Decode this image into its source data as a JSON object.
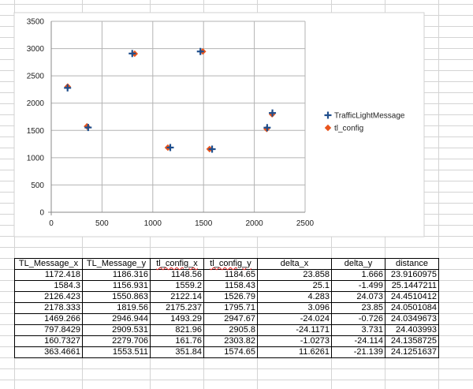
{
  "chart_data": {
    "type": "scatter",
    "xlim": [
      0,
      2500
    ],
    "ylim": [
      0,
      3500
    ],
    "x_ticks": [
      "0",
      "500",
      "1000",
      "1500",
      "2000",
      "2500"
    ],
    "y_ticks": [
      "0",
      "500",
      "1000",
      "1500",
      "2000",
      "2500",
      "3000",
      "3500"
    ],
    "grid": true,
    "legend_position": "right",
    "series": [
      {
        "name": "TrafficLightMessage",
        "marker": "plus",
        "color": "#1f4e8c",
        "points": [
          [
            1172.418,
            1186.316
          ],
          [
            1584.3,
            1156.931
          ],
          [
            2126.423,
            1550.863
          ],
          [
            2178.333,
            1819.56
          ],
          [
            1469.266,
            2946.944
          ],
          [
            797.8429,
            2909.531
          ],
          [
            160.7327,
            2279.706
          ],
          [
            363.4661,
            1553.511
          ]
        ]
      },
      {
        "name": "tl_config",
        "marker": "diamond",
        "color": "#e8541c",
        "points": [
          [
            1148.56,
            1184.65
          ],
          [
            1559.2,
            1158.43
          ],
          [
            2122.14,
            1526.79
          ],
          [
            2175.237,
            1795.71
          ],
          [
            1493.29,
            2947.67
          ],
          [
            821.96,
            2905.8
          ],
          [
            161.76,
            2303.82
          ],
          [
            351.84,
            1574.65
          ]
        ]
      }
    ]
  },
  "table": {
    "headers": [
      "TL_Message_x",
      "TL_Message_y",
      "tl_config_x",
      "tl_config_y",
      "delta_x",
      "delta_y",
      "distance"
    ],
    "rows": [
      [
        "1172.418",
        "1186.316",
        "1148.56",
        "1184.65",
        "23.858",
        "1.666",
        "23.9160975"
      ],
      [
        "1584.3",
        "1156.931",
        "1559.2",
        "1158.43",
        "25.1",
        "-1.499",
        "25.1447211"
      ],
      [
        "2126.423",
        "1550.863",
        "2122.14",
        "1526.79",
        "4.283",
        "24.073",
        "24.4510412"
      ],
      [
        "2178.333",
        "1819.56",
        "2175.237",
        "1795.71",
        "3.096",
        "23.85",
        "24.0501084"
      ],
      [
        "1469.266",
        "2946.944",
        "1493.29",
        "2947.67",
        "-24.024",
        "-0.726",
        "24.0349673"
      ],
      [
        "797.8429",
        "2909.531",
        "821.96",
        "2905.8",
        "-24.1171",
        "3.731",
        "24.403993"
      ],
      [
        "160.7327",
        "2279.706",
        "161.76",
        "2303.82",
        "-1.0273",
        "-24.114",
        "24.1358725"
      ],
      [
        "363.4661",
        "1553.511",
        "351.84",
        "1574.65",
        "11.6261",
        "-21.139",
        "24.1251637"
      ]
    ]
  }
}
